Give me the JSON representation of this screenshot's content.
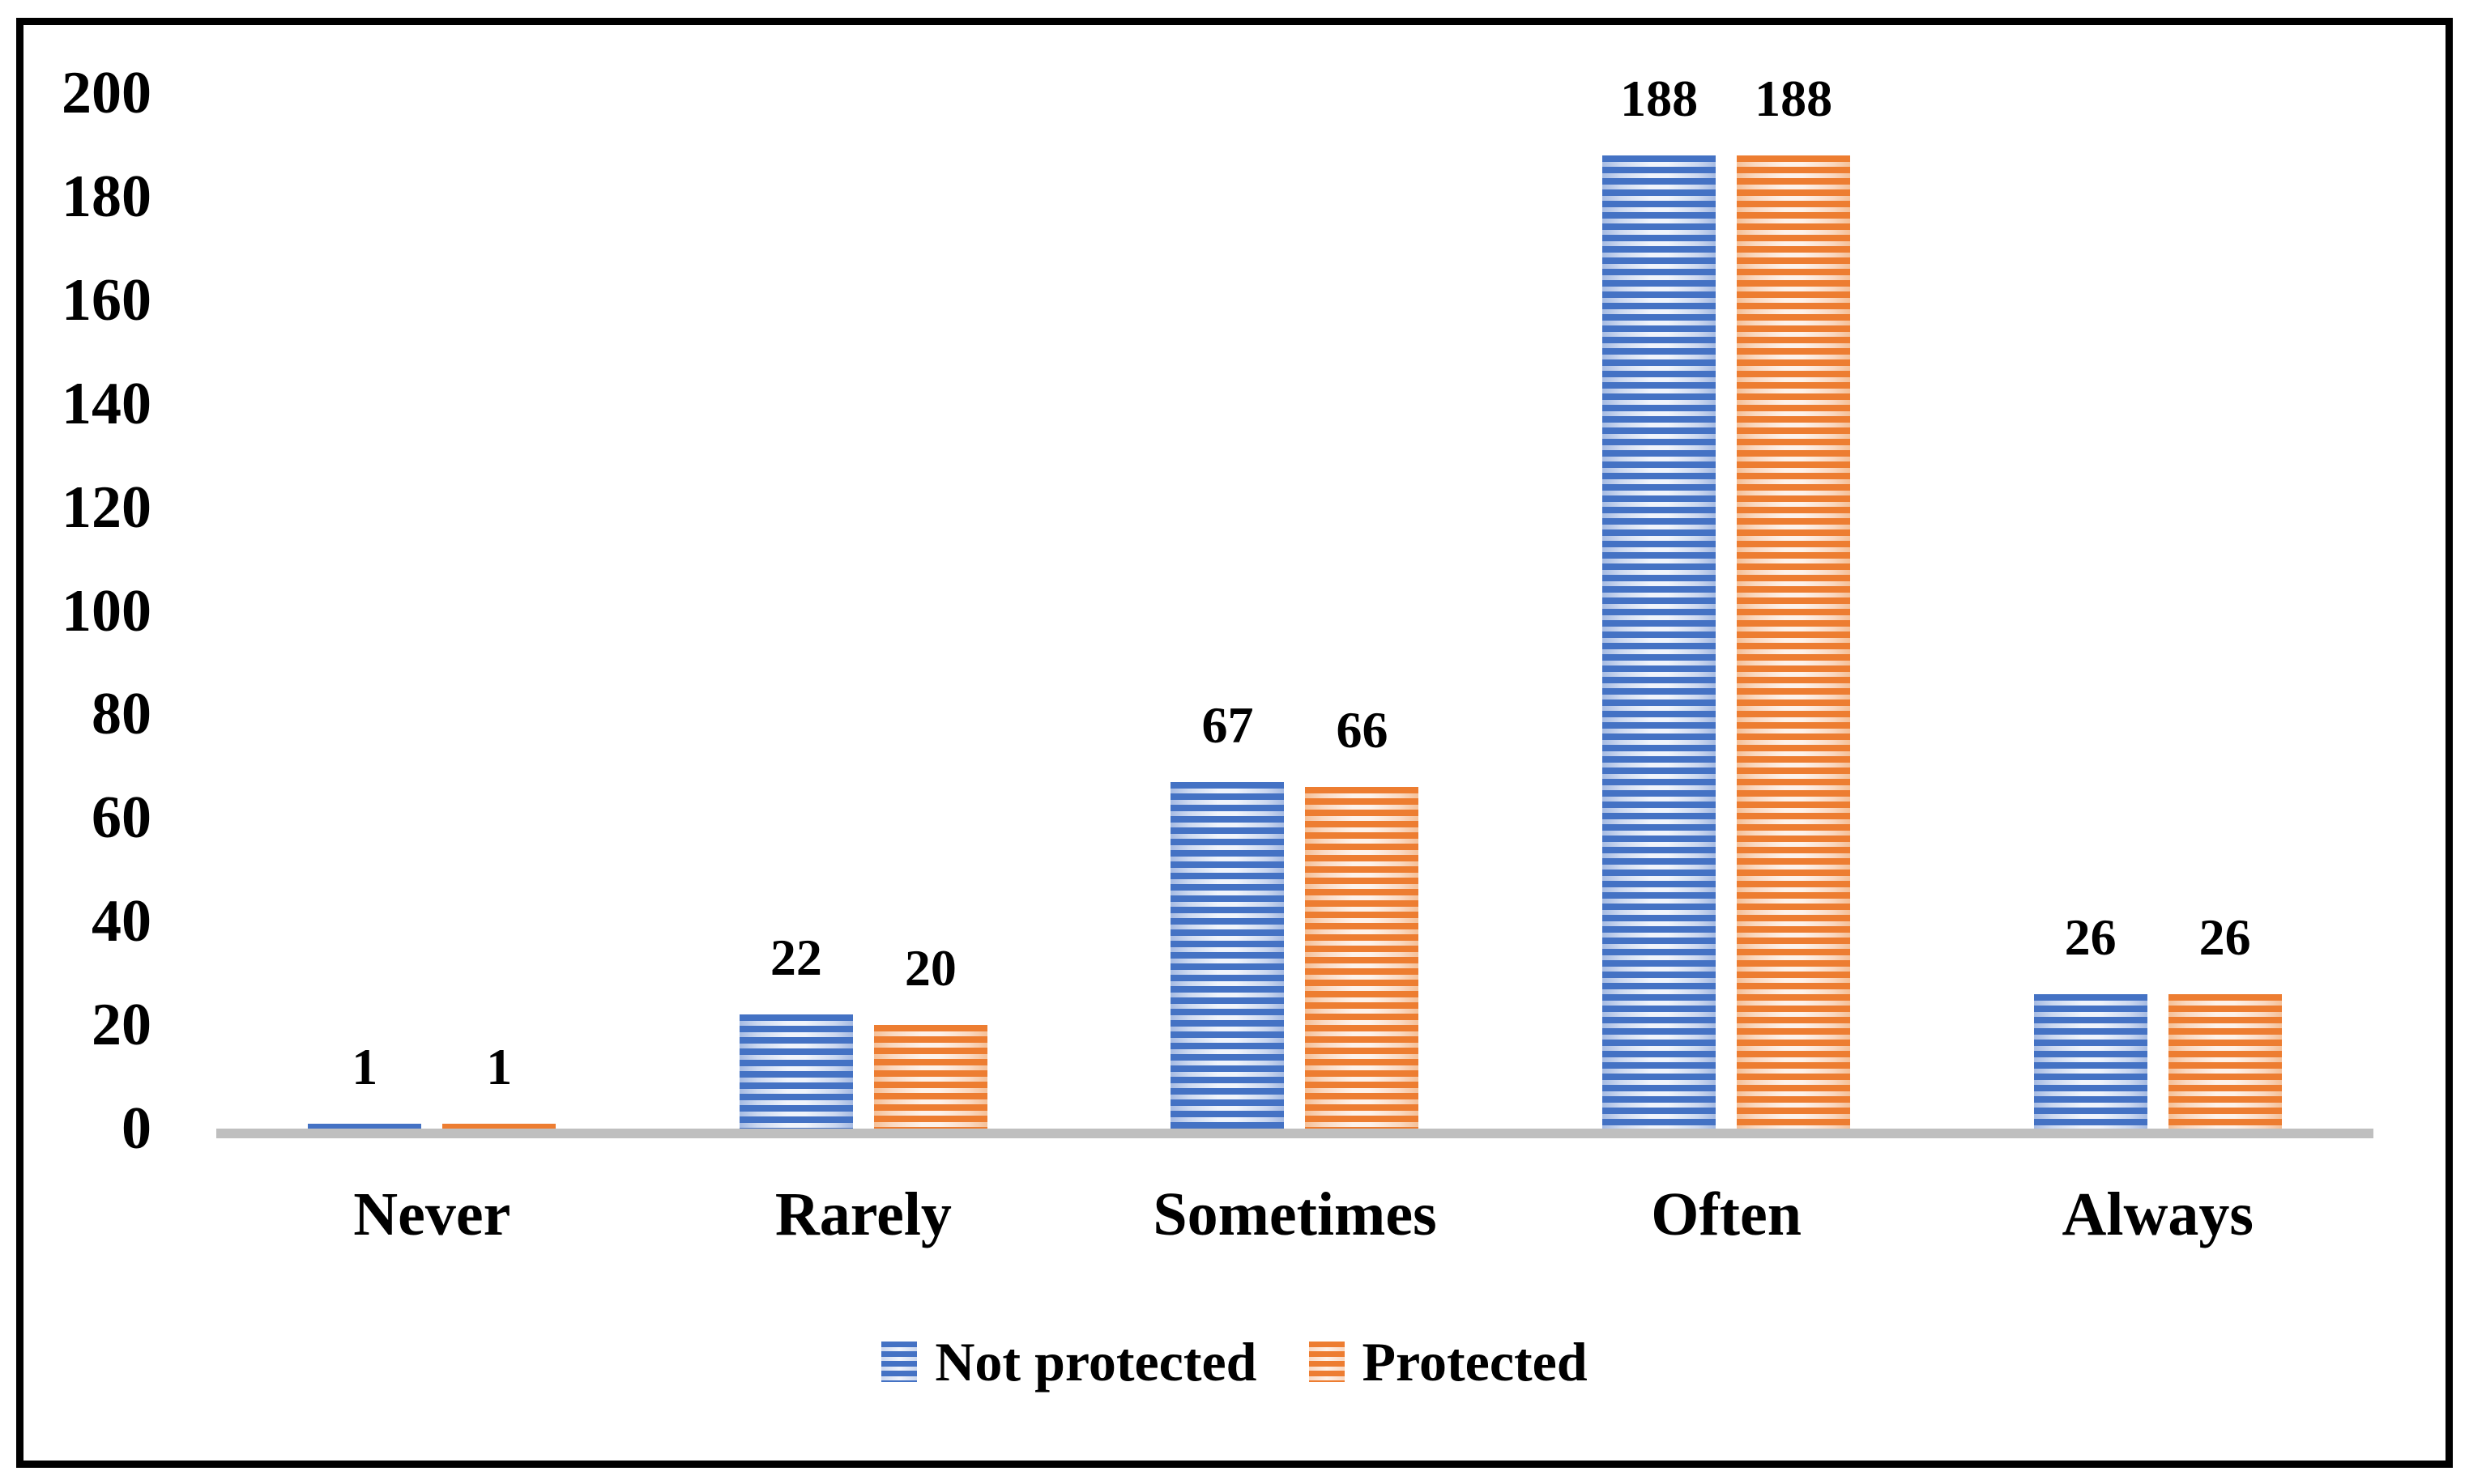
{
  "chart_data": {
    "type": "bar",
    "categories": [
      "Never",
      "Rarely",
      "Sometimes",
      "Often",
      "Always"
    ],
    "series": [
      {
        "name": "Not protected",
        "values": [
          1,
          22,
          67,
          188,
          26
        ]
      },
      {
        "name": "Protected",
        "values": [
          1,
          20,
          66,
          188,
          26
        ]
      }
    ],
    "title": "",
    "xlabel": "",
    "ylabel": "",
    "ylim": [
      0,
      200
    ],
    "yticks": [
      0,
      20,
      40,
      60,
      80,
      100,
      120,
      140,
      160,
      180,
      200
    ],
    "grid": false,
    "data_labels": true,
    "legend_position": "bottom",
    "bar_fill_style": "horizontal-stripes"
  },
  "styles": {
    "series_colors": [
      {
        "name": "Not protected",
        "solid": "#4472C4",
        "edge": "#a6bbe3",
        "mid": "#cdd9f0",
        "center": "#f0f4fb"
      },
      {
        "name": "Protected",
        "solid": "#ED7D31",
        "edge": "#f5c098",
        "mid": "#fad9c2",
        "center": "#fdf2ea"
      }
    ],
    "axis_line_color": "#BFBFBF",
    "frame_color": "#000000",
    "text_color": "#000000",
    "background": "#FFFFFF"
  }
}
